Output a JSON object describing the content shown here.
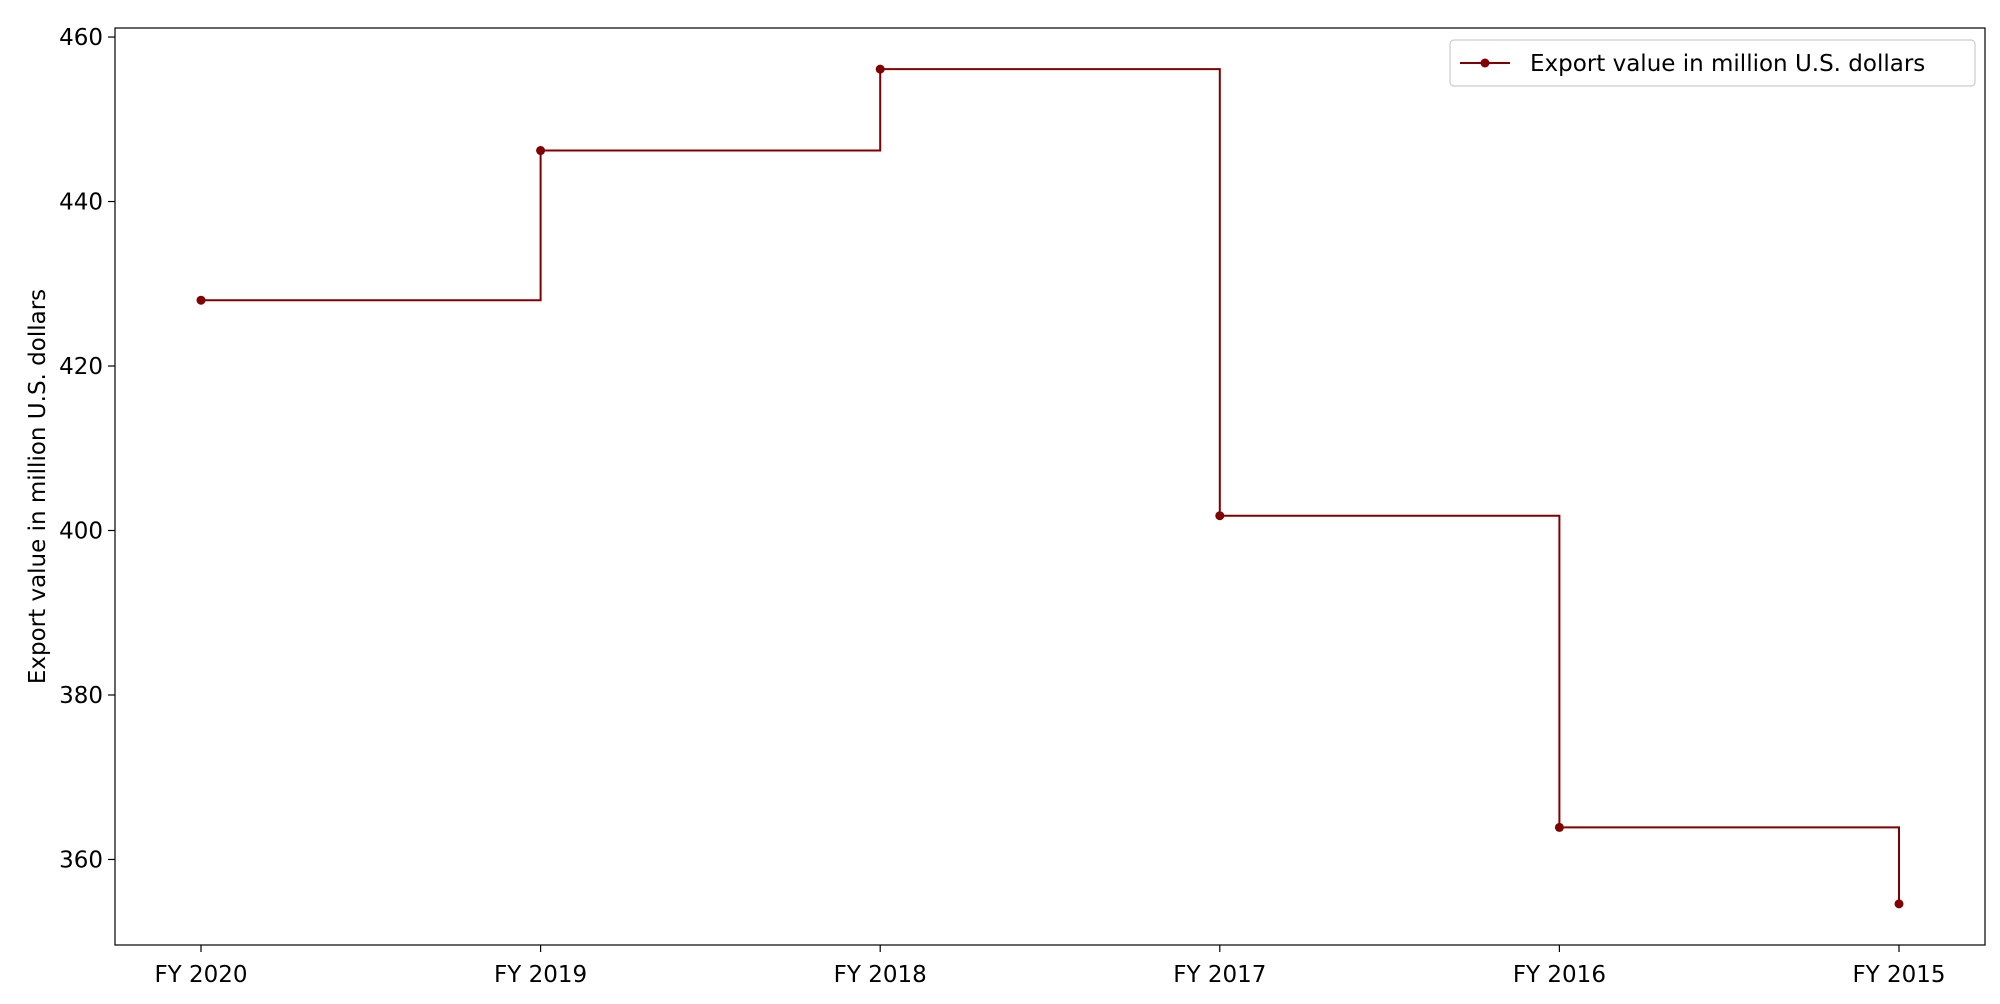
{
  "chart_data": {
    "type": "line",
    "drawstyle": "steps-post",
    "categories": [
      "FY 2020",
      "FY 2019",
      "FY 2018",
      "FY 2017",
      "FY 2016",
      "FY 2015"
    ],
    "series": [
      {
        "name": "Export value in million U.S. dollars",
        "values": [
          428,
          446.2,
          456.1,
          401.8,
          363.9,
          354.6
        ],
        "color": "#800000",
        "marker": "circle"
      }
    ],
    "title": "",
    "xlabel": "",
    "ylabel": "Export value in million U.S. dollars",
    "ylim": [
      349.6,
      461.1
    ],
    "yticks": [
      360,
      380,
      400,
      420,
      440,
      460
    ],
    "grid": false,
    "legend_position": "top-right"
  }
}
